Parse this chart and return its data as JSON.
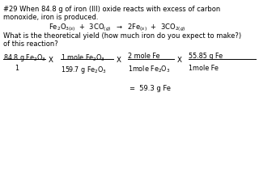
{
  "background_color": "#ffffff",
  "title_line1": "#29 When 84.8 g of iron (III) oxide reacts with excess of carbon",
  "title_line2": "monoxide, iron is produced.",
  "question": "What is the theoretical yield (how much iron do you expect to make?)",
  "question2": "of this reaction?",
  "result": "=  59.3 g Fe",
  "font_size_text": 6.0,
  "font_size_calc": 5.8
}
